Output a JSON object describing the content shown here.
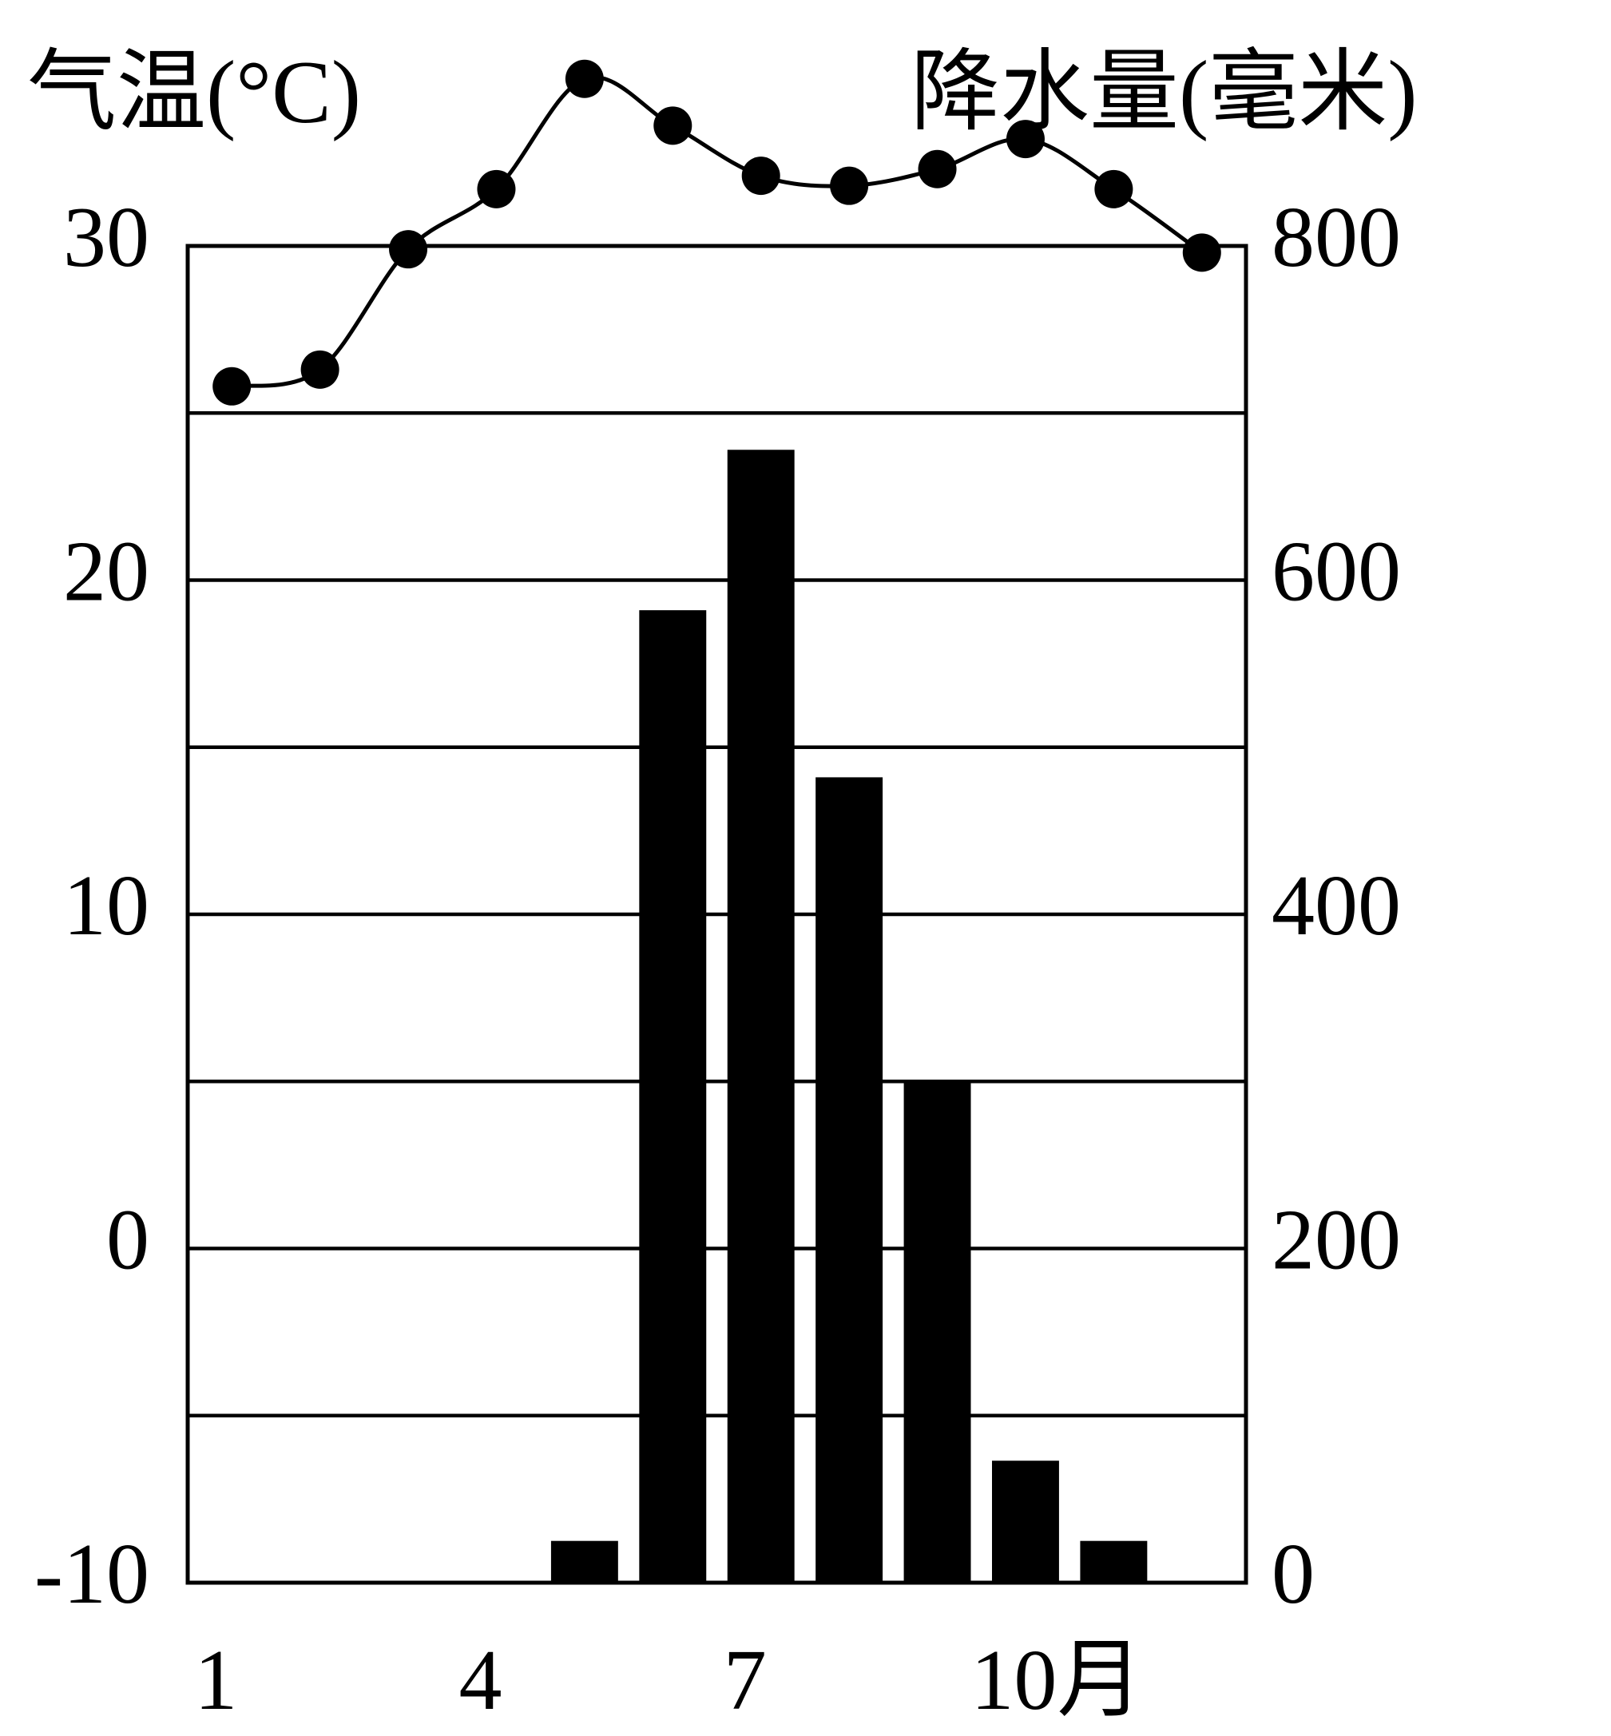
{
  "chart_data": {
    "type": "bar",
    "left_axis_title": "气温(°C)",
    "right_axis_title": "降水量(毫米)",
    "x": [
      1,
      2,
      3,
      4,
      5,
      6,
      7,
      8,
      9,
      10,
      11,
      12
    ],
    "x_tick_labels": [
      "1",
      "4",
      "7",
      "10月"
    ],
    "x_tick_positions": [
      1,
      4,
      7,
      10
    ],
    "temperature_axis": {
      "ticks": [
        30,
        20,
        10,
        0,
        -10
      ],
      "ylim": [
        -10,
        30
      ]
    },
    "precipitation_axis": {
      "ticks": [
        800,
        600,
        400,
        200,
        0
      ],
      "ylim": [
        0,
        800
      ]
    },
    "series": [
      {
        "type": "line",
        "axis": "left",
        "values": [
          25.8,
          26.3,
          29.9,
          31.7,
          35.0,
          33.6,
          32.1,
          31.8,
          32.3,
          33.2,
          31.7,
          29.8
        ]
      },
      {
        "type": "bar",
        "axis": "right",
        "values": [
          0,
          0,
          0,
          0,
          25,
          582,
          678,
          482,
          300,
          73,
          25,
          0
        ]
      }
    ],
    "gridlines": true,
    "colors": {
      "bar": "#000000",
      "line": "#000000",
      "background": "#ffffff"
    }
  }
}
